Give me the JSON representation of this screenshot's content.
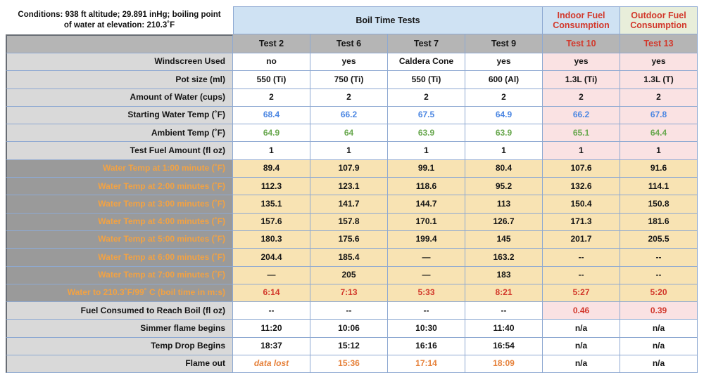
{
  "conditions": "Conditions: 938 ft altitude; 29.891 inHg; boiling point\nof water at elevation: 210.3˚F",
  "header_groups": [
    {
      "label": "Boil Time Tests"
    },
    {
      "label": "Indoor Fuel Consumption"
    },
    {
      "label": "Outdoor Fuel Consumption"
    }
  ],
  "columns": [
    "Test 2",
    "Test 6",
    "Test 7",
    "Test 9",
    "Test 10",
    "Test 13"
  ],
  "chart_data": {
    "type": "table",
    "title": "Boil Time Tests",
    "columns": [
      "Test 2",
      "Test 6",
      "Test 7",
      "Test 9",
      "Test 10",
      "Test 13"
    ],
    "rows": [
      {
        "label": "Windscreen Used",
        "values": [
          "no",
          "yes",
          "Caldera Cone",
          "yes",
          "yes",
          "yes"
        ]
      },
      {
        "label": "Pot size (ml)",
        "values": [
          "550 (Ti)",
          "750 (Ti)",
          "550 (Ti)",
          "600 (Al)",
          "1.3L (Ti)",
          "1.3L (T)"
        ]
      },
      {
        "label": "Amount of Water (cups)",
        "values": [
          "2",
          "2",
          "2",
          "2",
          "2",
          "2"
        ]
      },
      {
        "label": "Starting Water Temp (˚F)",
        "values": [
          "68.4",
          "66.2",
          "67.5",
          "64.9",
          "66.2",
          "67.8"
        ]
      },
      {
        "label": "Ambient Temp (˚F)",
        "values": [
          "64.9",
          "64",
          "63.9",
          "63.9",
          "65.1",
          "64.4"
        ]
      },
      {
        "label": "Test Fuel Amount (fl oz)",
        "values": [
          "1",
          "1",
          "1",
          "1",
          "1",
          "1"
        ]
      },
      {
        "label": "Water Temp at 1:00 minute (˚F)",
        "values": [
          "89.4",
          "107.9",
          "99.1",
          "80.4",
          "107.6",
          "91.6"
        ]
      },
      {
        "label": "Water Temp at 2:00 minutes (˚F)",
        "values": [
          "112.3",
          "123.1",
          "118.6",
          "95.2",
          "132.6",
          "114.1"
        ]
      },
      {
        "label": "Water Temp at 3:00 minutes (˚F)",
        "values": [
          "135.1",
          "141.7",
          "144.7",
          "113",
          "150.4",
          "150.8"
        ]
      },
      {
        "label": "Water Temp at 4:00 minutes (˚F)",
        "values": [
          "157.6",
          "157.8",
          "170.1",
          "126.7",
          "171.3",
          "181.6"
        ]
      },
      {
        "label": "Water Temp at 5:00 minutes (˚F)",
        "values": [
          "180.3",
          "175.6",
          "199.4",
          "145",
          "201.7",
          "205.5"
        ]
      },
      {
        "label": "Water Temp at 6:00 minutes (˚F)",
        "values": [
          "204.4",
          "185.4",
          "—",
          "163.2",
          "--",
          "--"
        ]
      },
      {
        "label": "Water Temp at 7:00 minutes (˚F)",
        "values": [
          "—",
          "205",
          "—",
          "183",
          "--",
          "--"
        ]
      },
      {
        "label": "Water to 210.3˚F/99˚ C (boil time in m:s)",
        "values": [
          "6:14",
          "7:13",
          "5:33",
          "8:21",
          "5:27",
          "5:20"
        ]
      },
      {
        "label": "Fuel Consumed to Reach Boil (fl oz)",
        "values": [
          "--",
          "--",
          "--",
          "--",
          "0.46",
          "0.39"
        ]
      },
      {
        "label": "Simmer flame begins",
        "values": [
          "11:20",
          "10:06",
          "10:30",
          "11:40",
          "n/a",
          "n/a"
        ]
      },
      {
        "label": "Temp Drop Begins",
        "values": [
          "18:37",
          "15:12",
          "16:16",
          "16:54",
          "n/a",
          "n/a"
        ]
      },
      {
        "label": "Flame out",
        "values": [
          "data lost",
          "15:36",
          "17:14",
          "18:09",
          "n/a",
          "n/a"
        ]
      }
    ]
  },
  "presentation": {
    "row_styles": [
      {
        "label_style": "light",
        "cells": [
          "w.k",
          "w.k",
          "w.k",
          "w.k",
          "p.k",
          "p.k"
        ]
      },
      {
        "label_style": "light",
        "cells": [
          "w.k",
          "w.k",
          "w.k",
          "w.k",
          "p.k",
          "p.k"
        ]
      },
      {
        "label_style": "light",
        "cells": [
          "w.k",
          "w.k",
          "w.k",
          "w.k",
          "p.k",
          "p.k"
        ]
      },
      {
        "label_style": "light",
        "cells": [
          "w.b",
          "w.b",
          "w.b",
          "w.b",
          "p.b",
          "p.b"
        ]
      },
      {
        "label_style": "light",
        "cells": [
          "w.g",
          "w.g",
          "w.g",
          "w.g",
          "p.g",
          "p.g"
        ]
      },
      {
        "label_style": "light",
        "cells": [
          "w.k",
          "w.k",
          "w.k",
          "w.k",
          "p.k",
          "p.k"
        ]
      },
      {
        "label_style": "dark",
        "cells": [
          "t.k",
          "t.k",
          "t.k",
          "t.k",
          "t.k",
          "t.k"
        ]
      },
      {
        "label_style": "dark",
        "cells": [
          "t.k",
          "t.k",
          "t.k",
          "t.k",
          "t.k",
          "t.k"
        ]
      },
      {
        "label_style": "dark",
        "cells": [
          "t.k",
          "t.k",
          "t.k",
          "t.k",
          "t.k",
          "t.k"
        ]
      },
      {
        "label_style": "dark",
        "cells": [
          "t.k",
          "t.k",
          "t.k",
          "t.k",
          "t.k",
          "t.k"
        ]
      },
      {
        "label_style": "dark",
        "cells": [
          "t.k",
          "t.k",
          "t.k",
          "t.k",
          "t.k",
          "t.k"
        ]
      },
      {
        "label_style": "dark",
        "cells": [
          "t.k",
          "t.k",
          "t.k",
          "t.k",
          "t.k",
          "t.k"
        ]
      },
      {
        "label_style": "dark",
        "cells": [
          "t.k",
          "t.k",
          "t.k",
          "t.k",
          "t.k",
          "t.k"
        ]
      },
      {
        "label_style": "dark",
        "cells": [
          "t.r",
          "t.r",
          "t.r",
          "t.r",
          "t.r",
          "t.r"
        ]
      },
      {
        "label_style": "light",
        "cells": [
          "w.k",
          "w.k",
          "w.k",
          "w.k",
          "p.r",
          "p.r"
        ]
      },
      {
        "label_style": "light",
        "cells": [
          "w.k",
          "w.k",
          "w.k",
          "w.k",
          "w.k",
          "w.k"
        ]
      },
      {
        "label_style": "light",
        "cells": [
          "w.k",
          "w.k",
          "w.k",
          "w.k",
          "w.k",
          "w.k"
        ]
      },
      {
        "label_style": "light",
        "cells": [
          "w.i",
          "w.o",
          "w.o",
          "w.o",
          "w.k",
          "w.k"
        ]
      }
    ]
  },
  "colors": {
    "border": "#8ea9d2",
    "outer": "#686d74",
    "header_blue": "#cfe2f3",
    "header_green": "#e8eeda",
    "gray_head": "#b5b5b5",
    "label_light": "#d9d9d9",
    "label_dark": "#9a9a9a",
    "tan": "#f8e3b3",
    "pink": "#fae2e3",
    "red": "#d2382b",
    "orange": "#f2a243",
    "orange_deep": "#e6813a",
    "blue": "#4b86e2",
    "green": "#69a84f"
  }
}
